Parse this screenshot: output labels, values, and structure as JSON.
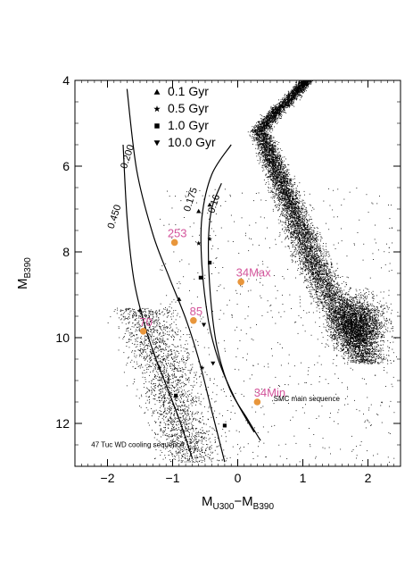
{
  "chart_data": {
    "type": "scatter",
    "title": "",
    "xlabel": {
      "main": "M",
      "sub1": "U300",
      "sep": "−M",
      "sub2": "B390"
    },
    "ylabel": {
      "main": "M",
      "sub": "B390"
    },
    "xlim": [
      -2.5,
      2.5
    ],
    "ylim": [
      13,
      4
    ],
    "y_inverted": true,
    "xticks": [
      -2,
      -1,
      0,
      1,
      2
    ],
    "xtick_labels": [
      "−2",
      "−1",
      "0",
      "1",
      "2"
    ],
    "yticks": [
      4,
      6,
      8,
      10,
      12
    ],
    "ytick_labels": [
      "4",
      "6",
      "8",
      "10",
      "12"
    ],
    "grid": false,
    "legend_position": "top-left",
    "legend": [
      {
        "marker": "triangle-up",
        "label": "0.1 Gyr"
      },
      {
        "marker": "star",
        "label": "0.5 Gyr"
      },
      {
        "marker": "square",
        "label": "1.0 Gyr"
      },
      {
        "marker": "triangle-down",
        "label": "10.0 Gyr"
      }
    ],
    "cooling_tracks": [
      {
        "mass_label": "0.450",
        "label_at": [
          -1.85,
          7.2
        ],
        "points": [
          [
            -1.76,
            5.5
          ],
          [
            -1.7,
            7.2
          ],
          [
            -1.6,
            8.6
          ],
          [
            -1.45,
            9.6
          ],
          [
            -1.28,
            10.4
          ],
          [
            -1.1,
            11.1
          ],
          [
            -0.9,
            11.9
          ],
          [
            -0.7,
            12.8
          ]
        ],
        "markers": [
          [
            -1.5,
            9.35,
            "triangle-up"
          ],
          [
            -1.2,
            10.7,
            "star"
          ],
          [
            -0.95,
            11.35,
            "square"
          ]
        ]
      },
      {
        "mass_label": "0.200",
        "label_at": [
          -1.65,
          5.8
        ],
        "points": [
          [
            -1.7,
            4.2
          ],
          [
            -1.55,
            6.1
          ],
          [
            -1.3,
            7.6
          ],
          [
            -1.05,
            8.6
          ],
          [
            -0.8,
            9.55
          ],
          [
            -0.6,
            10.5
          ],
          [
            -0.4,
            11.7
          ],
          [
            -0.2,
            12.9
          ]
        ],
        "markers": [
          [
            -0.9,
            9.1,
            "triangle-up"
          ],
          [
            -0.55,
            10.7,
            "star"
          ],
          [
            -0.2,
            12.05,
            "square"
          ]
        ]
      },
      {
        "mass_label": "0.175",
        "label_at": [
          -0.68,
          6.8
        ],
        "points": [
          [
            -0.1,
            5.5
          ],
          [
            -0.4,
            6.2
          ],
          [
            -0.55,
            7.2
          ],
          [
            -0.55,
            8.3
          ],
          [
            -0.45,
            9.6
          ],
          [
            -0.3,
            10.5
          ],
          [
            -0.05,
            11.4
          ],
          [
            0.25,
            12.2
          ]
        ],
        "markers": [
          [
            -0.6,
            7.05,
            "triangle-up"
          ],
          [
            -0.6,
            7.8,
            "star"
          ],
          [
            -0.57,
            8.6,
            "square"
          ],
          [
            -0.52,
            9.7,
            "triangle-down"
          ]
        ]
      },
      {
        "mass_label": "0.16",
        "label_at": [
          -0.32,
          6.9
        ],
        "points": [
          [
            -0.25,
            6.4
          ],
          [
            -0.4,
            7.0
          ],
          [
            -0.45,
            7.8
          ],
          [
            -0.42,
            9.0
          ],
          [
            -0.32,
            10.2
          ],
          [
            -0.12,
            11.2
          ],
          [
            0.15,
            11.9
          ],
          [
            0.35,
            12.4
          ]
        ],
        "markers": [
          [
            -0.43,
            6.9,
            "triangle-up"
          ],
          [
            -0.43,
            7.7,
            "star"
          ],
          [
            -0.43,
            8.25,
            "square"
          ],
          [
            -0.38,
            10.6,
            "triangle-down"
          ]
        ]
      }
    ],
    "highlighted_stars": [
      {
        "label": "253",
        "x": -0.97,
        "y": 7.78
      },
      {
        "label": "34Max",
        "x": 0.05,
        "y": 8.7
      },
      {
        "label": "70",
        "x": -1.45,
        "y": 9.85
      },
      {
        "label": "85",
        "x": -0.68,
        "y": 9.6
      },
      {
        "label": "34Min",
        "x": 0.3,
        "y": 11.5
      }
    ],
    "highlight_color": "#e8963c",
    "label_color": "#d4559c",
    "annotations": [
      {
        "text": "SMC main sequence",
        "x": 0.55,
        "y": 11.48
      },
      {
        "text": "47 Tuc WD cooling sequence",
        "x": -2.25,
        "y": 12.55
      }
    ]
  }
}
